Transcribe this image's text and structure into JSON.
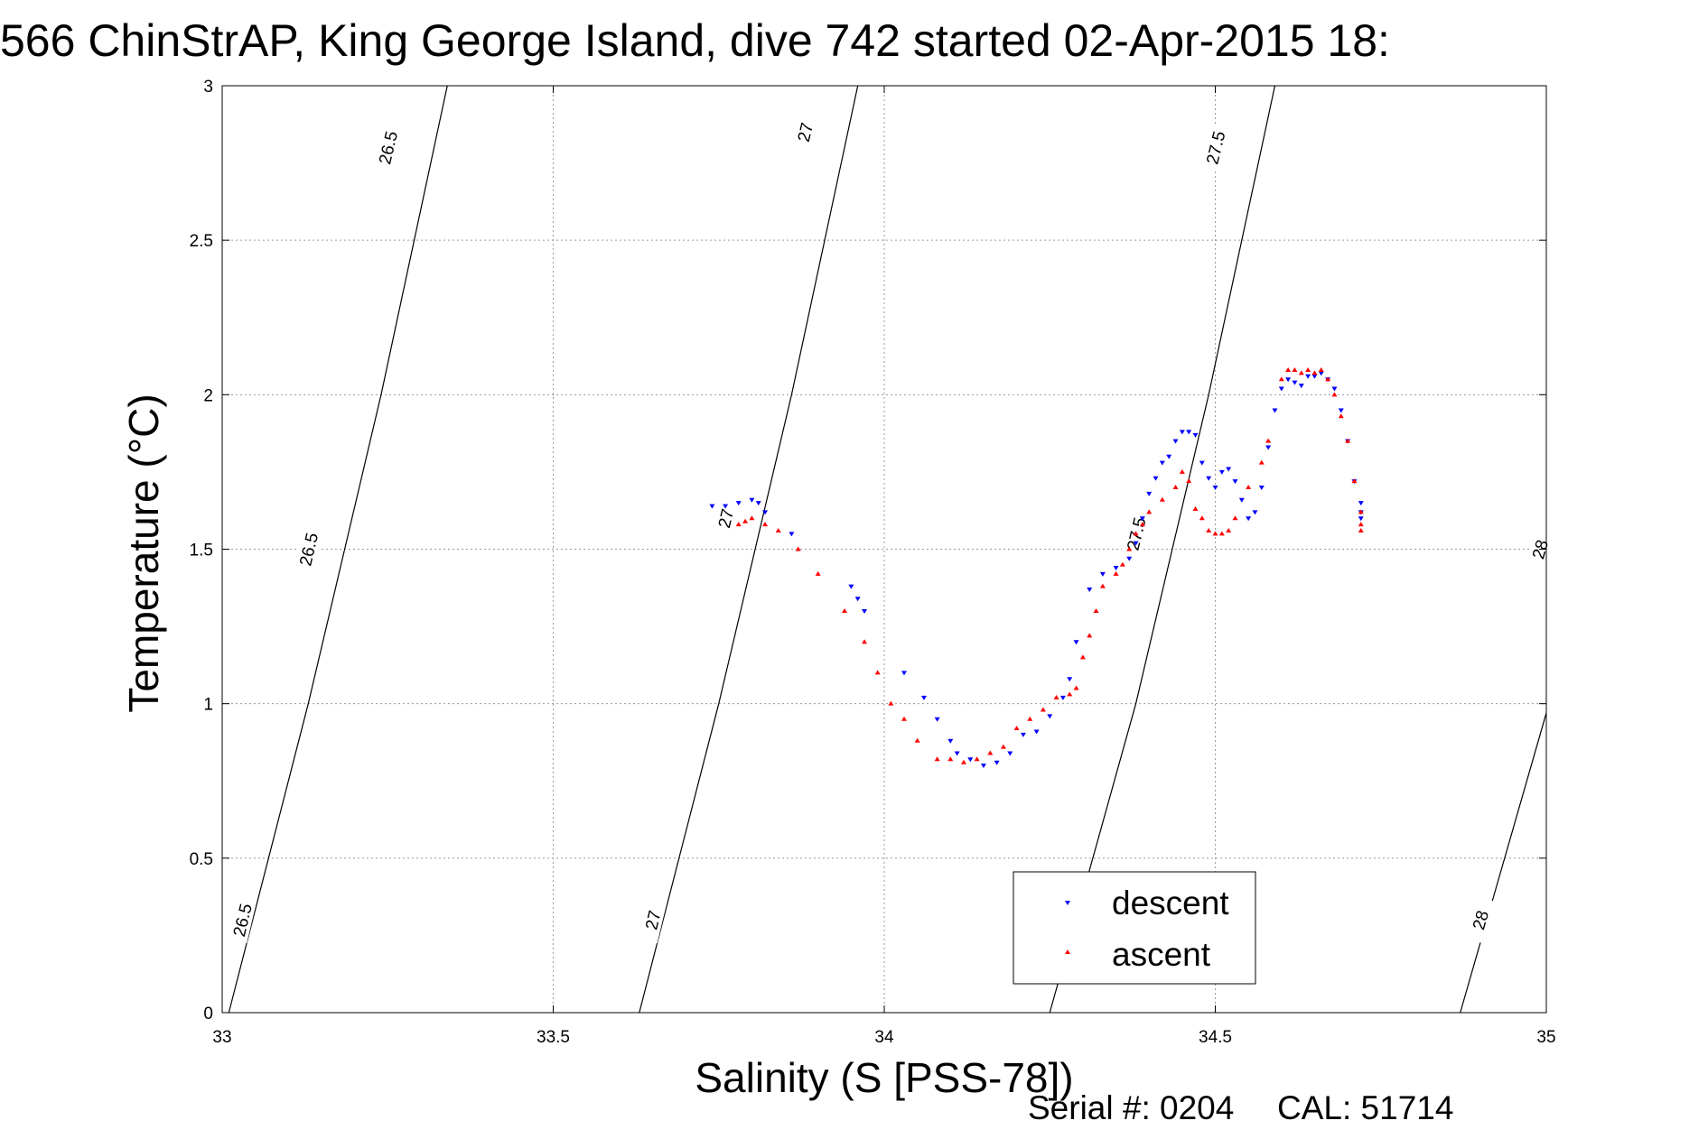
{
  "chart_data": {
    "type": "scatter",
    "title": "566 ChinStrAP, King George Island, dive 742 started 02-Apr-2015 18:",
    "xlabel": "Salinity (S [PSS-78])",
    "ylabel": "Temperature (°C)",
    "xlim": [
      33,
      35
    ],
    "ylim": [
      0,
      3
    ],
    "xticks": [
      "33",
      "33.5",
      "34",
      "34.5",
      "35"
    ],
    "yticks": [
      "0",
      "0.5",
      "1",
      "1.5",
      "2",
      "2.5",
      "3"
    ],
    "grid": true,
    "legend_position": "bottom-right",
    "isopycnals": [
      {
        "label": "26.5",
        "points": [
          [
            33.01,
            0
          ],
          [
            33.13,
            1.0
          ],
          [
            33.24,
            2.0
          ],
          [
            33.34,
            3.0
          ]
        ],
        "label_positions": [
          [
            33.03,
            0.3
          ],
          [
            33.13,
            1.5
          ],
          [
            33.25,
            2.8
          ]
        ]
      },
      {
        "label": "27",
        "points": [
          [
            33.63,
            0
          ],
          [
            33.75,
            1.0
          ],
          [
            33.86,
            2.0
          ],
          [
            33.96,
            3.0
          ]
        ],
        "label_positions": [
          [
            33.65,
            0.3
          ],
          [
            33.76,
            1.6
          ],
          [
            33.88,
            2.85
          ]
        ]
      },
      {
        "label": "27.5",
        "points": [
          [
            34.25,
            0
          ],
          [
            34.38,
            1.0
          ],
          [
            34.49,
            2.0
          ],
          [
            34.59,
            3.0
          ]
        ],
        "label_positions": [
          [
            34.38,
            1.55
          ],
          [
            34.5,
            2.8
          ]
        ]
      },
      {
        "label": "28",
        "points": [
          [
            34.87,
            0
          ],
          [
            35.0,
            0.97
          ]
        ],
        "label_positions": [
          [
            34.9,
            0.3
          ],
          [
            34.99,
            1.5
          ]
        ]
      }
    ],
    "series": [
      {
        "name": "descent",
        "color": "#0000ff",
        "marker": "triangle-down",
        "x": [
          33.74,
          33.76,
          33.78,
          33.8,
          33.81,
          33.82,
          33.86,
          33.95,
          33.96,
          33.97,
          34.03,
          34.06,
          34.08,
          34.1,
          34.11,
          34.13,
          34.15,
          34.17,
          34.19,
          34.21,
          34.23,
          34.25,
          34.27,
          34.28,
          34.29,
          34.31,
          34.33,
          34.35,
          34.37,
          34.38,
          34.39,
          34.4,
          34.41,
          34.42,
          34.43,
          34.44,
          34.45,
          34.46,
          34.47,
          34.48,
          34.49,
          34.5,
          34.51,
          34.52,
          34.53,
          34.54,
          34.55,
          34.56,
          34.57,
          34.58,
          34.59,
          34.6,
          34.61,
          34.62,
          34.63,
          34.64,
          34.65,
          34.66,
          34.67,
          34.68,
          34.69,
          34.7,
          34.71,
          34.72,
          34.72,
          34.72
        ],
        "y": [
          1.64,
          1.64,
          1.65,
          1.66,
          1.65,
          1.62,
          1.55,
          1.38,
          1.34,
          1.3,
          1.1,
          1.02,
          0.95,
          0.88,
          0.84,
          0.82,
          0.8,
          0.81,
          0.84,
          0.9,
          0.91,
          0.96,
          1.02,
          1.08,
          1.2,
          1.37,
          1.42,
          1.44,
          1.47,
          1.52,
          1.6,
          1.68,
          1.73,
          1.78,
          1.8,
          1.85,
          1.88,
          1.88,
          1.87,
          1.78,
          1.73,
          1.7,
          1.75,
          1.76,
          1.72,
          1.66,
          1.6,
          1.62,
          1.7,
          1.83,
          1.95,
          2.02,
          2.05,
          2.04,
          2.03,
          2.06,
          2.06,
          2.07,
          2.05,
          2.02,
          1.95,
          1.85,
          1.72,
          1.6,
          1.65,
          1.62
        ]
      },
      {
        "name": "ascent",
        "color": "#ff0000",
        "marker": "triangle-up",
        "x": [
          33.78,
          33.79,
          33.8,
          33.82,
          33.84,
          33.87,
          33.9,
          33.94,
          33.97,
          33.99,
          34.01,
          34.03,
          34.05,
          34.08,
          34.1,
          34.12,
          34.14,
          34.16,
          34.18,
          34.2,
          34.22,
          34.24,
          34.26,
          34.28,
          34.29,
          34.3,
          34.31,
          34.32,
          34.33,
          34.35,
          34.36,
          34.37,
          34.38,
          34.39,
          34.4,
          34.42,
          34.44,
          34.45,
          34.46,
          34.47,
          34.48,
          34.49,
          34.5,
          34.51,
          34.52,
          34.53,
          34.55,
          34.57,
          34.58,
          34.6,
          34.61,
          34.62,
          34.63,
          34.64,
          34.65,
          34.66,
          34.67,
          34.68,
          34.69,
          34.7,
          34.71,
          34.72,
          34.72,
          34.72
        ],
        "y": [
          1.58,
          1.59,
          1.6,
          1.58,
          1.56,
          1.5,
          1.42,
          1.3,
          1.2,
          1.1,
          1.0,
          0.95,
          0.88,
          0.82,
          0.82,
          0.81,
          0.82,
          0.84,
          0.86,
          0.92,
          0.95,
          0.98,
          1.02,
          1.03,
          1.05,
          1.15,
          1.22,
          1.3,
          1.38,
          1.42,
          1.45,
          1.5,
          1.55,
          1.58,
          1.62,
          1.66,
          1.7,
          1.75,
          1.72,
          1.63,
          1.6,
          1.56,
          1.55,
          1.55,
          1.56,
          1.6,
          1.7,
          1.78,
          1.85,
          2.05,
          2.08,
          2.08,
          2.07,
          2.08,
          2.07,
          2.08,
          2.05,
          2.0,
          1.93,
          1.85,
          1.72,
          1.62,
          1.58,
          1.56
        ]
      }
    ]
  },
  "footer": {
    "serial": "Serial #: 0204",
    "cal": "CAL: 51714"
  }
}
